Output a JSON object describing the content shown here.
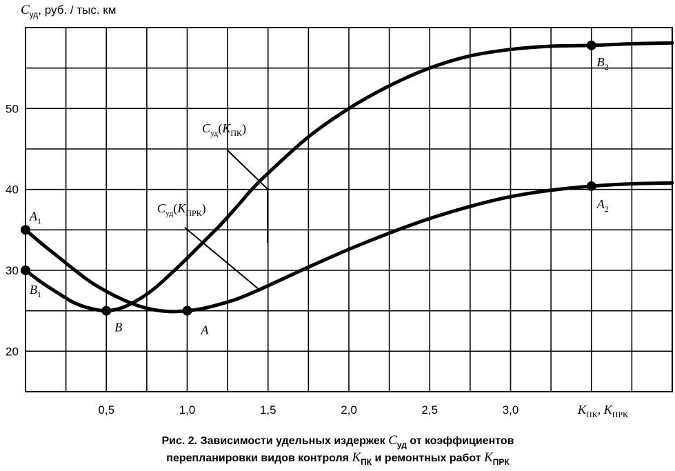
{
  "chart_data": {
    "type": "line",
    "ylabel_symbol": "C",
    "ylabel_sub": "уд",
    "ylabel_rest": ", руб. / тыс. км",
    "xlabel": "K",
    "xlabel_sub1": "ПК",
    "xlabel_sep": ", K",
    "xlabel_sub2": "ПРК",
    "xlim": [
      0,
      4.0
    ],
    "ylim": [
      15,
      60
    ],
    "x_ticks": [
      0.5,
      1.0,
      1.5,
      2.0,
      2.5,
      3.0
    ],
    "x_tick_labels": [
      "0,5",
      "1,0",
      "1,5",
      "2,0",
      "2,5",
      "3,0"
    ],
    "y_ticks": [
      20,
      30,
      40,
      50
    ],
    "y_tick_labels": [
      "20",
      "30",
      "40",
      "50"
    ],
    "grid": true,
    "series": [
      {
        "name_main": "C",
        "name_sub": "уд",
        "name_arg": "K",
        "name_arg_sub": "ПК",
        "x": [
          0,
          0.1,
          0.2,
          0.3,
          0.4,
          0.5,
          0.6,
          0.7,
          0.8,
          0.9,
          1.0,
          1.1,
          1.2,
          1.3,
          1.4,
          1.5,
          1.75,
          2.0,
          2.25,
          2.5,
          2.75,
          3.0,
          3.25,
          3.5,
          3.75,
          4.0
        ],
        "y": [
          30,
          28.5,
          27.2,
          26.0,
          25.3,
          25.0,
          25.4,
          26.4,
          27.8,
          29.6,
          31.5,
          33.5,
          35.5,
          37.7,
          40.0,
          42.0,
          46.5,
          50.0,
          52.8,
          55.0,
          56.5,
          57.3,
          57.7,
          57.8,
          58.0,
          58.1
        ]
      },
      {
        "name_main": "C",
        "name_sub": "уд",
        "name_arg": "K",
        "name_arg_sub": "ПРК",
        "x": [
          0,
          0.1,
          0.2,
          0.3,
          0.4,
          0.5,
          0.6,
          0.7,
          0.8,
          0.9,
          1.0,
          1.1,
          1.2,
          1.3,
          1.4,
          1.5,
          1.75,
          2.0,
          2.25,
          2.5,
          2.75,
          3.0,
          3.25,
          3.5,
          3.75,
          4.0
        ],
        "y": [
          35,
          33.3,
          31.7,
          30.1,
          28.6,
          27.4,
          26.4,
          25.6,
          25.1,
          24.9,
          25.0,
          25.3,
          25.8,
          26.4,
          27.2,
          28.1,
          30.4,
          32.6,
          34.6,
          36.4,
          37.9,
          39.1,
          39.9,
          40.4,
          40.7,
          40.8
        ]
      }
    ],
    "points": [
      {
        "label": "A",
        "sub": "1",
        "x": 0,
        "y": 35
      },
      {
        "label": "B",
        "sub": "1",
        "x": 0,
        "y": 30
      },
      {
        "label": "B",
        "sub": "",
        "x": 0.5,
        "y": 25
      },
      {
        "label": "A",
        "sub": "",
        "x": 1.0,
        "y": 25
      },
      {
        "label": "B",
        "sub": "2",
        "x": 3.5,
        "y": 57.8
      },
      {
        "label": "A",
        "sub": "2",
        "x": 3.5,
        "y": 40.4
      }
    ]
  },
  "caption": {
    "line1_prefix": "Рис. 2. Зависимости удельных издержек ",
    "line1_symbol": "C",
    "line1_sub": "уд",
    "line1_suffix": " от коэффициентов",
    "line2_prefix": "перепланировки видов контроля ",
    "line2_sym1": "K",
    "line2_sub1": "ПК",
    "line2_mid": " и ремонтных работ ",
    "line2_sym2": "K",
    "line2_sub2": "ПРК"
  }
}
